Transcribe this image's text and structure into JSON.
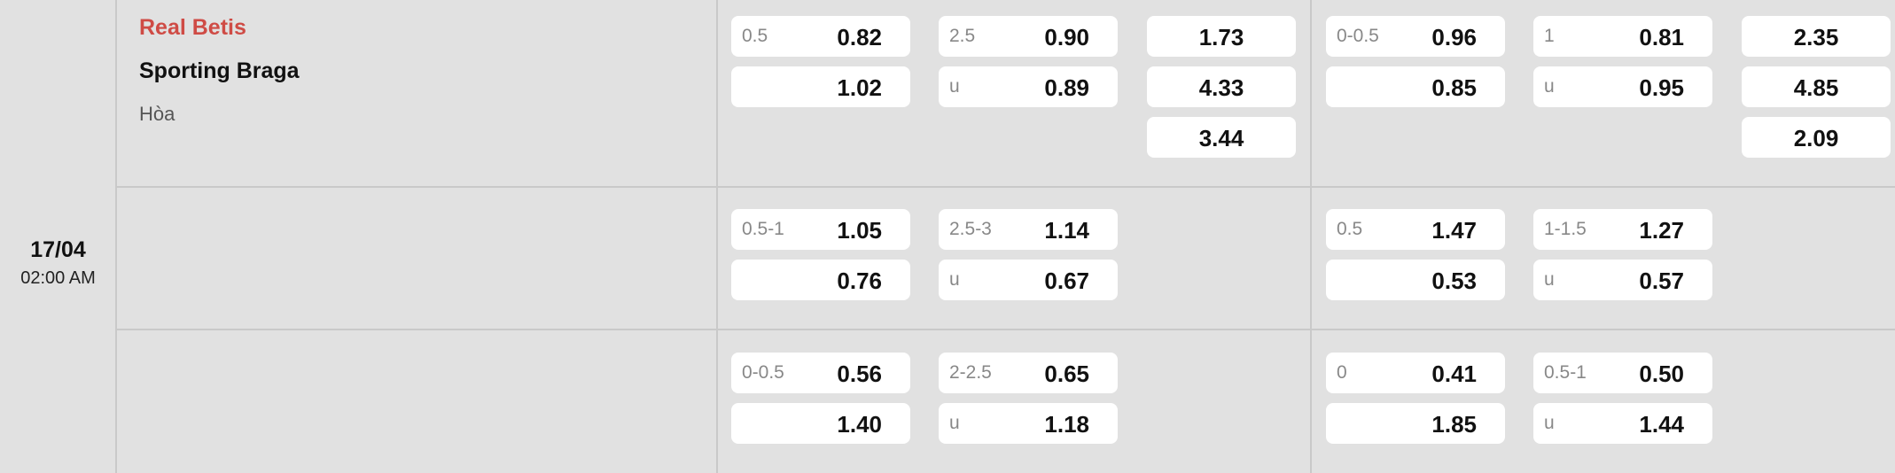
{
  "match": {
    "date": "17/04",
    "time": "02:00 AM",
    "home": "Real Betis",
    "away": "Sporting Braga",
    "draw": "Hòa",
    "home_color": "#cf4b45"
  },
  "rows": [
    {
      "s1": {
        "hcap": {
          "label": "0.5",
          "top": "0.82",
          "bottom": "1.02"
        },
        "ou": {
          "label": "2.5",
          "top": "0.90",
          "u": "u",
          "bottom": "0.89"
        },
        "x12": [
          "1.73",
          "4.33",
          "3.44"
        ]
      },
      "s2": {
        "hcap": {
          "label": "0-0.5",
          "top": "0.96",
          "bottom": "0.85"
        },
        "ou": {
          "label": "1",
          "top": "0.81",
          "u": "u",
          "bottom": "0.95"
        },
        "x12": [
          "2.35",
          "4.85",
          "2.09"
        ]
      }
    },
    {
      "s1": {
        "hcap": {
          "label": "0.5-1",
          "top": "1.05",
          "bottom": "0.76"
        },
        "ou": {
          "label": "2.5-3",
          "top": "1.14",
          "u": "u",
          "bottom": "0.67"
        }
      },
      "s2": {
        "hcap": {
          "label": "0.5",
          "top": "1.47",
          "bottom": "0.53"
        },
        "ou": {
          "label": "1-1.5",
          "top": "1.27",
          "u": "u",
          "bottom": "0.57"
        }
      }
    },
    {
      "s1": {
        "hcap": {
          "label": "0-0.5",
          "top": "0.56",
          "bottom": "1.40"
        },
        "ou": {
          "label": "2-2.5",
          "top": "0.65",
          "u": "u",
          "bottom": "1.18"
        }
      },
      "s2": {
        "hcap": {
          "label": "0",
          "top": "0.41",
          "bottom": "1.85"
        },
        "ou": {
          "label": "0.5-1",
          "top": "0.50",
          "u": "u",
          "bottom": "1.44"
        }
      }
    }
  ]
}
